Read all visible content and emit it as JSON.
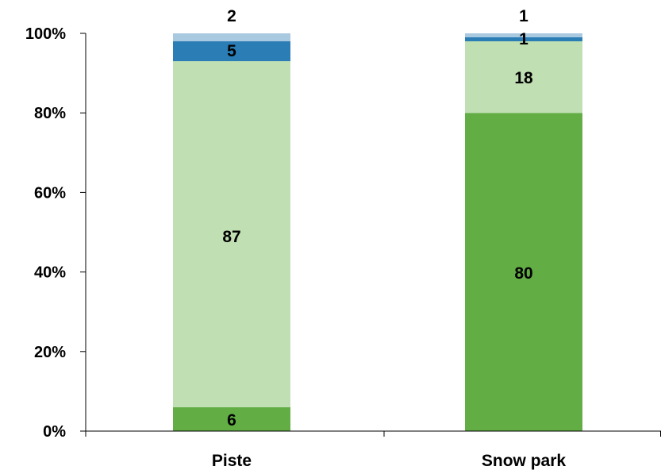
{
  "chart_data": {
    "type": "bar",
    "stacked": true,
    "normalized": true,
    "categories": [
      "Piste",
      "Snow park"
    ],
    "series": [
      {
        "values": [
          6,
          80
        ],
        "color": "#62ae44"
      },
      {
        "values": [
          87,
          18
        ],
        "color": "#c0dfb2"
      },
      {
        "values": [
          5,
          1
        ],
        "color": "#2a7db5"
      },
      {
        "values": [
          2,
          1
        ],
        "color": "#a9c9e0"
      }
    ],
    "data_labels": [
      [
        "6",
        "80"
      ],
      [
        "87",
        "18"
      ],
      [
        "5",
        "1"
      ],
      [
        "2",
        "1"
      ]
    ],
    "yticks": [
      "0%",
      "20%",
      "40%",
      "60%",
      "80%",
      "100%"
    ],
    "ylim": [
      0,
      100
    ],
    "title": "",
    "xlabel": "",
    "ylabel": "",
    "legend": "none",
    "grid": false
  }
}
